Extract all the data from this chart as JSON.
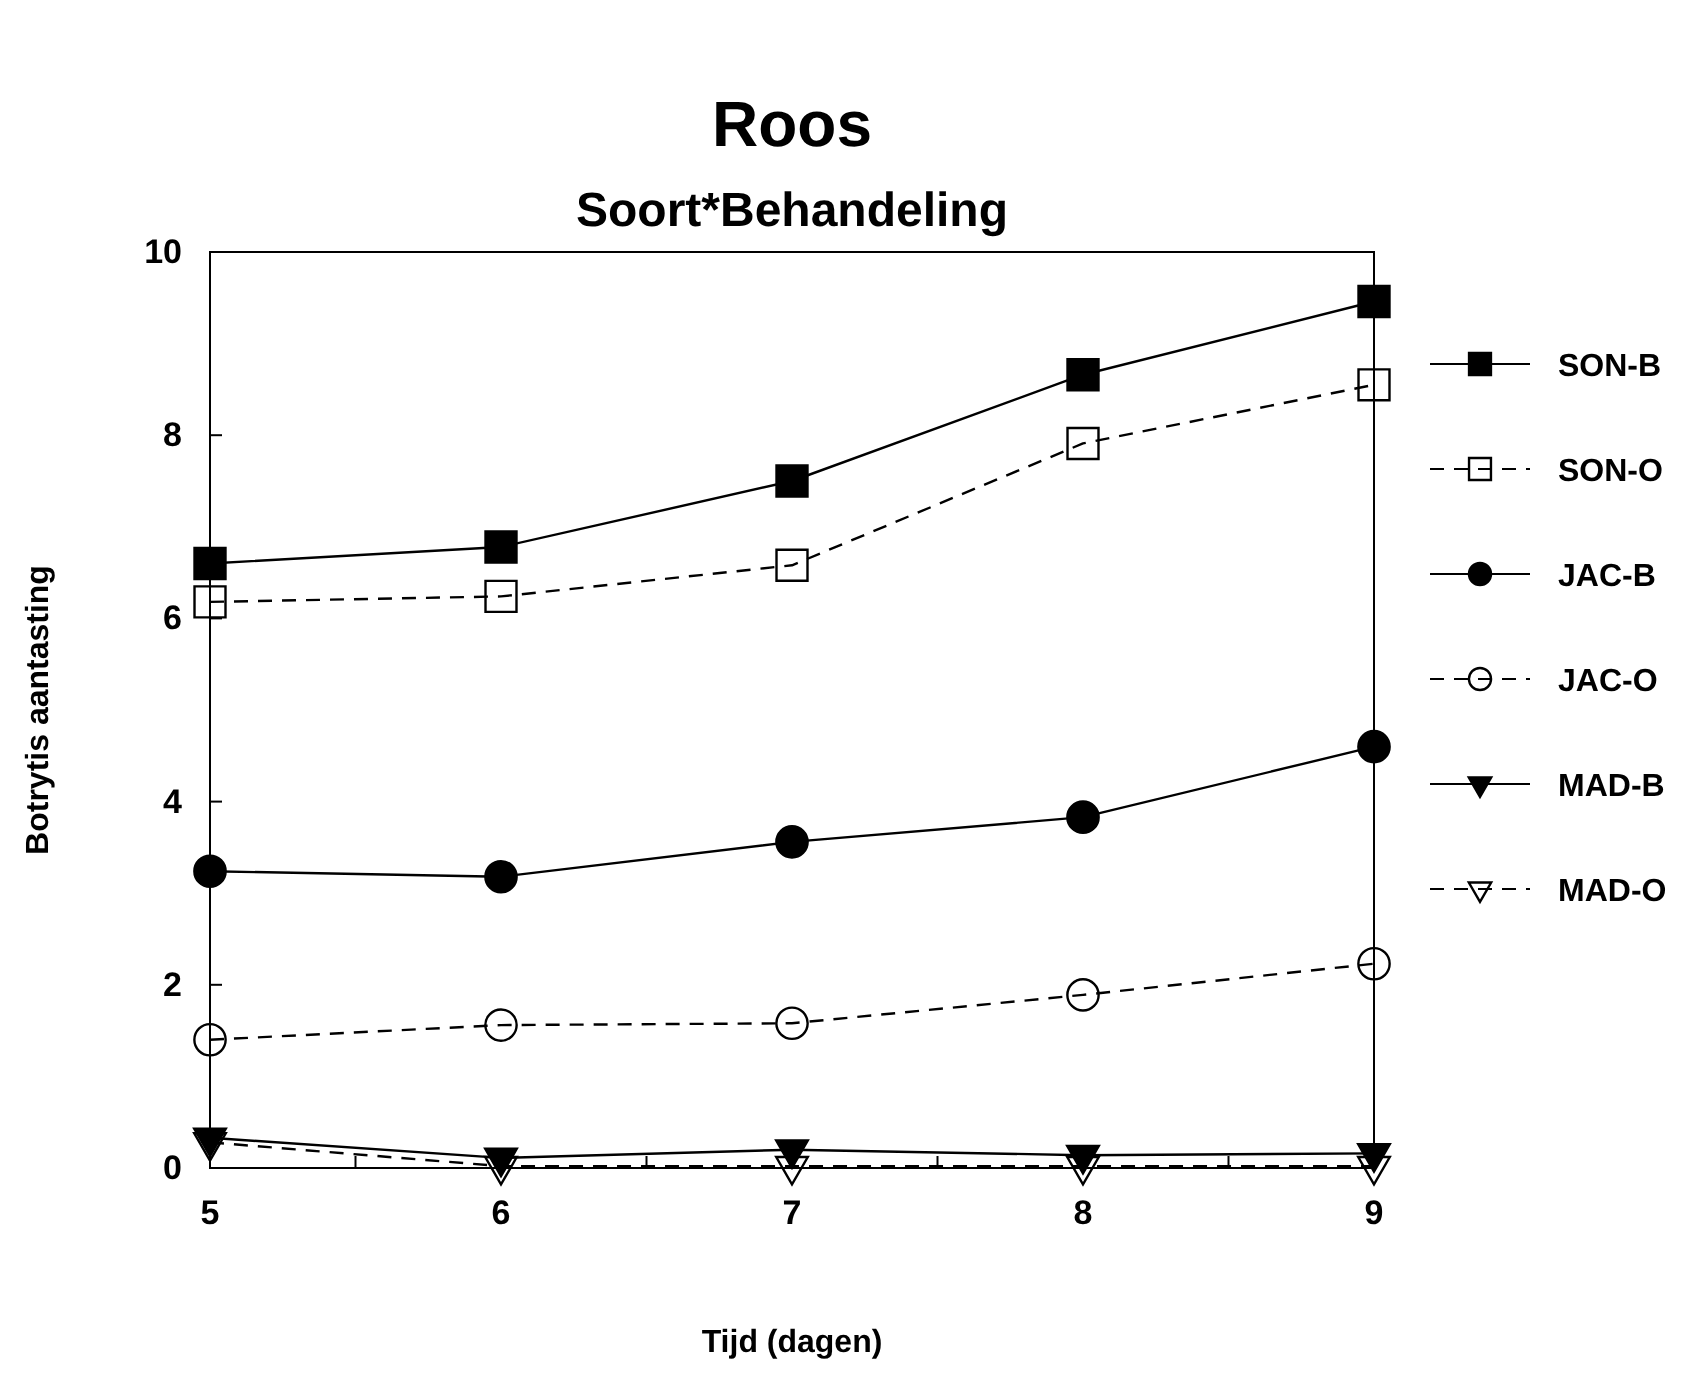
{
  "chart_data": {
    "type": "line",
    "title": "Roos",
    "subtitle": "Soort*Behandeling",
    "xlabel": "Tijd (dagen)",
    "ylabel": "Botrytis aantasting",
    "x": [
      5,
      6,
      7,
      8,
      9
    ],
    "xlim": [
      5,
      9
    ],
    "xticks": [
      5,
      {
        "value": 5.5,
        "label": null
      },
      6,
      {
        "value": 6.5,
        "label": null
      },
      7,
      {
        "value": 7.5,
        "label": null
      },
      8,
      {
        "value": 8.5,
        "label": null
      },
      9
    ],
    "ylim": [
      0,
      10
    ],
    "yticks": [
      0,
      2,
      4,
      6,
      8,
      10
    ],
    "grid": false,
    "legend": "right",
    "series": [
      {
        "name": "SON-B",
        "color": "#000000",
        "marker": "square",
        "line_style": "solid",
        "values": [
          6.6,
          6.78,
          7.5,
          8.66,
          9.46
        ]
      },
      {
        "name": "SON-O",
        "color": "#000000",
        "marker": "square",
        "line_style": "dashed",
        "values": [
          6.18,
          6.24,
          6.58,
          7.91,
          8.55
        ]
      },
      {
        "name": "JAC-B",
        "color": "#000000",
        "marker": "circle",
        "line_style": "solid",
        "values": [
          3.24,
          3.18,
          3.56,
          3.83,
          4.6
        ]
      },
      {
        "name": "JAC-O",
        "color": "#000000",
        "marker": "circle",
        "line_style": "dashed",
        "values": [
          1.4,
          1.56,
          1.58,
          1.89,
          2.23
        ]
      },
      {
        "name": "MAD-B",
        "color": "#000000",
        "marker": "triangle",
        "line_style": "solid",
        "values": [
          0.33,
          0.11,
          0.2,
          0.14,
          0.16
        ]
      },
      {
        "name": "MAD-O",
        "color": "#000000",
        "marker": "triangle",
        "line_style": "dashed",
        "values": [
          0.28,
          0.02,
          0.02,
          0.02,
          0.02
        ]
      }
    ]
  }
}
